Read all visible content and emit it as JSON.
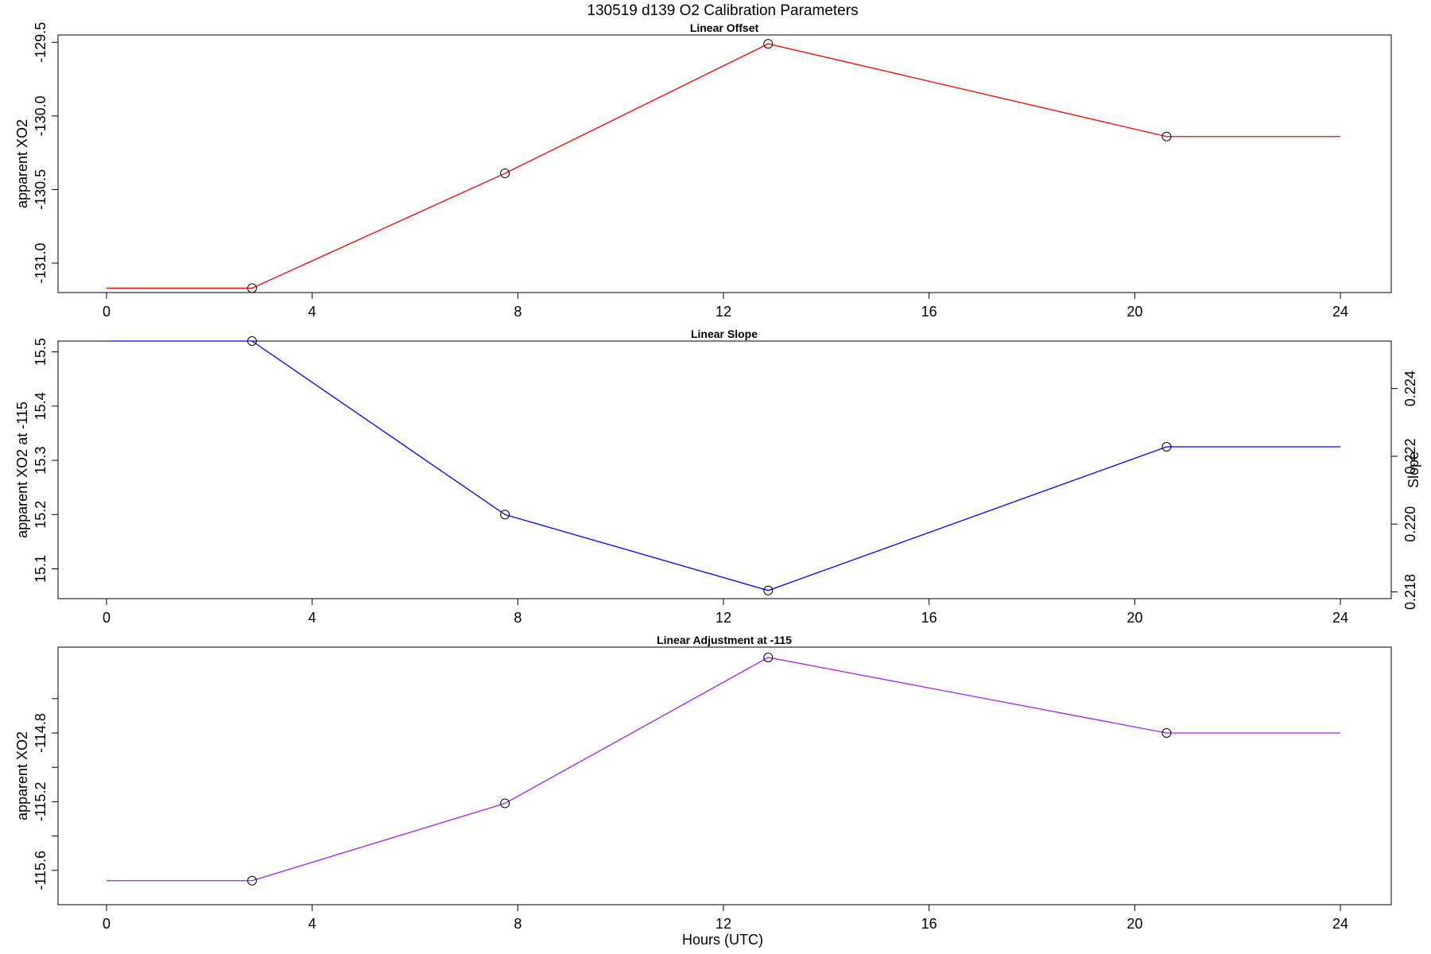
{
  "title": "130519   d139   O2 Calibration Parameters",
  "xlabel": "Hours (UTC)",
  "chart_data": [
    {
      "type": "line",
      "title": "Linear Offset",
      "xlabel": "",
      "ylabel": "apparent XO2",
      "xlim": [
        0,
        24
      ],
      "ylim": [
        -131.2,
        -129.45
      ],
      "x_ticks": [
        0,
        4,
        8,
        12,
        16,
        20,
        24
      ],
      "y_ticks": [
        -131.0,
        -130.5,
        -130.0,
        -129.5
      ],
      "y_tick_labels": [
        "-131.0",
        "-130.5",
        "-130.0",
        "-129.5"
      ],
      "line_color": "#ff0000",
      "series": [
        {
          "line_x": [
            0,
            2.83,
            7.75,
            12.87,
            20.62,
            24
          ],
          "line_y": [
            -131.17,
            -131.17,
            -130.39,
            -129.51,
            -130.14,
            -130.14
          ],
          "points_x": [
            2.83,
            7.75,
            12.87,
            20.62
          ],
          "points_y": [
            -131.17,
            -130.39,
            -129.51,
            -130.14
          ]
        }
      ]
    },
    {
      "type": "line",
      "title": "Linear Slope",
      "xlabel": "",
      "ylabel": "apparent XO2 at -115",
      "y2label": "Slope",
      "xlim": [
        0,
        24
      ],
      "ylim": [
        15.045,
        15.52
      ],
      "x_ticks": [
        0,
        4,
        8,
        12,
        16,
        20,
        24
      ],
      "y_ticks": [
        15.1,
        15.2,
        15.3,
        15.4,
        15.5
      ],
      "y_tick_labels": [
        "15.1",
        "15.2",
        "15.3",
        "15.4",
        "15.5"
      ],
      "y2_ticks": [
        0.218,
        0.22,
        0.222,
        0.224
      ],
      "y2_tick_labels": [
        "0.218",
        "0.220",
        "0.222",
        "0.224"
      ],
      "y2_range": [
        0.2178,
        0.2254
      ],
      "line_color": "#0000ff",
      "series": [
        {
          "line_x": [
            0,
            2.83,
            7.75,
            12.87,
            20.62,
            24
          ],
          "line_y": [
            15.52,
            15.52,
            15.2,
            15.06,
            15.325,
            15.325
          ],
          "points_x": [
            2.83,
            7.75,
            12.87,
            20.62
          ],
          "points_y": [
            15.52,
            15.2,
            15.06,
            15.325
          ]
        }
      ]
    },
    {
      "type": "line",
      "title": "Linear Adjustment at -115",
      "xlabel": "Hours (UTC)",
      "ylabel": "apparent XO2",
      "xlim": [
        0,
        24
      ],
      "ylim": [
        -115.8,
        -114.3
      ],
      "x_ticks": [
        0,
        4,
        8,
        12,
        16,
        20,
        24
      ],
      "y_ticks": [
        -115.6,
        -115.4,
        -115.2,
        -115.0,
        -114.8,
        -114.6
      ],
      "y_tick_labels": [
        "-115.6",
        "",
        "-115.2",
        "",
        "-114.8",
        ""
      ],
      "line_color": "#a020f0",
      "series": [
        {
          "line_x": [
            0,
            2.83,
            7.75,
            12.87,
            20.62,
            24
          ],
          "line_y": [
            -115.66,
            -115.66,
            -115.21,
            -114.36,
            -114.8,
            -114.8
          ],
          "points_x": [
            2.83,
            7.75,
            12.87,
            20.62
          ],
          "points_y": [
            -115.66,
            -115.21,
            -114.36,
            -114.8
          ]
        }
      ]
    }
  ]
}
